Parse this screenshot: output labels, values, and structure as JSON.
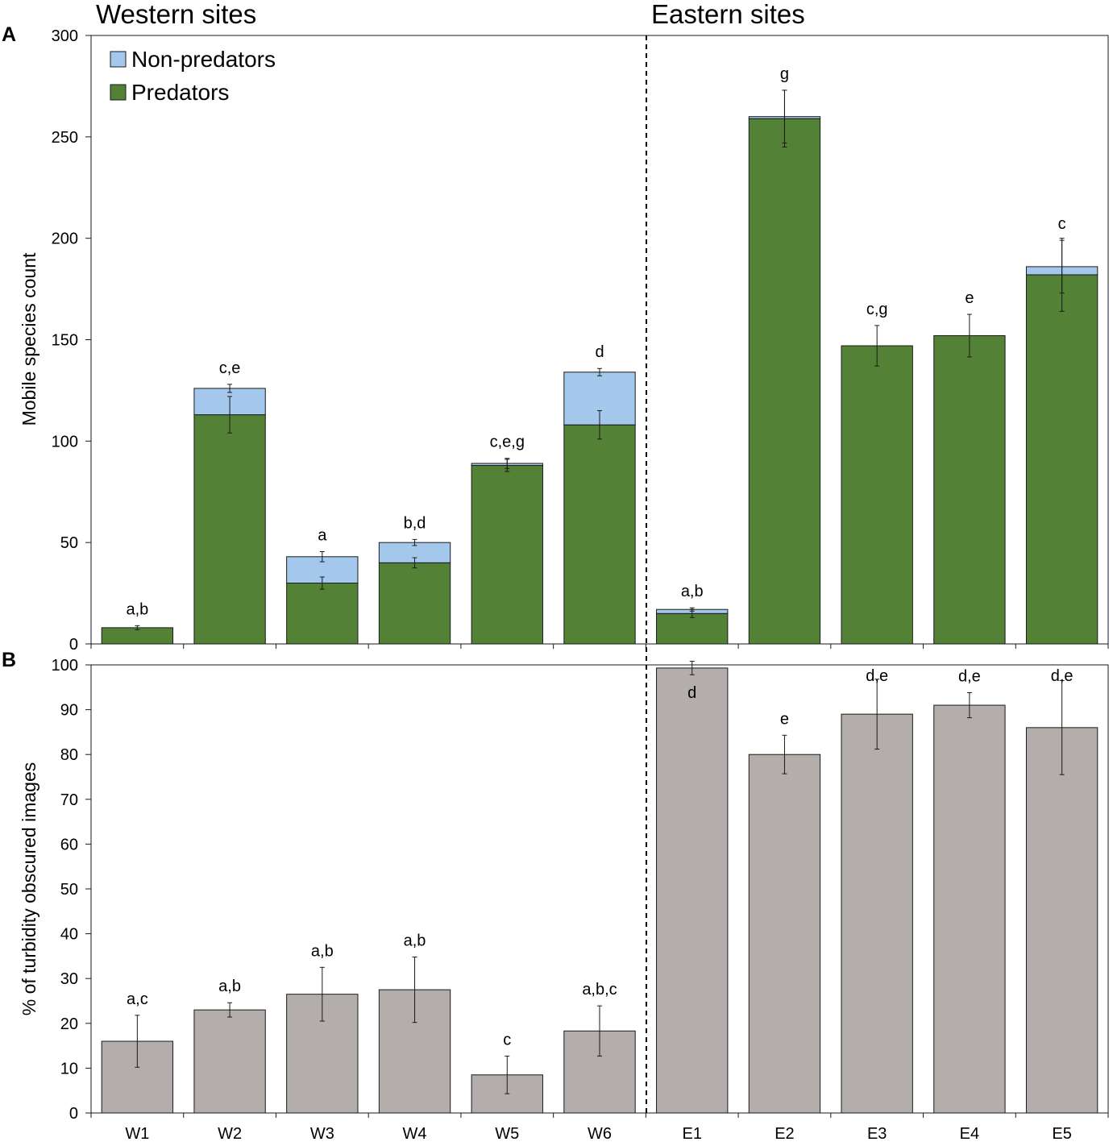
{
  "figure": {
    "panel_a_letter": "A",
    "panel_b_letter": "B",
    "western_title": "Western sites",
    "eastern_title": "Eastern sites"
  },
  "colors": {
    "predators": "#538135",
    "non_predators": "#a4c8ec",
    "turbidity": "#b3adab",
    "outline": "#1a1a1a"
  },
  "chart_data": [
    {
      "panel": "A",
      "type": "bar",
      "stacked": true,
      "title": "",
      "xlabel": "",
      "ylabel": "Mobile species count",
      "ylim": [
        0,
        300
      ],
      "yticks": [
        0,
        50,
        100,
        150,
        200,
        250,
        300
      ],
      "grid": false,
      "legend_position": "top-left",
      "categories": [
        "W1",
        "W2",
        "W3",
        "W4",
        "W5",
        "W6",
        "E1",
        "E2",
        "E3",
        "E4",
        "E5"
      ],
      "series": [
        {
          "name": "Predators",
          "values": [
            8,
            113,
            30,
            40,
            88,
            108,
            15,
            259,
            147,
            152,
            182
          ],
          "error": [
            1,
            9,
            3,
            2.5,
            3,
            7,
            2,
            14,
            10,
            10.5,
            18
          ]
        },
        {
          "name": "Non-predators",
          "values": [
            0,
            13,
            13,
            10,
            1,
            26,
            2,
            1,
            0,
            0,
            4
          ],
          "error": [
            0,
            2,
            2.5,
            1.5,
            2.5,
            1.8,
            0.8,
            13,
            0,
            0,
            13
          ]
        }
      ],
      "significance_labels": [
        "a,b",
        "c,e",
        "a",
        "b,d",
        "c,e,g",
        "d",
        "a,b",
        "g",
        "c,g",
        "e",
        "c"
      ],
      "legend": [
        "Non-predators",
        "Predators"
      ]
    },
    {
      "panel": "B",
      "type": "bar",
      "title": "",
      "xlabel": "",
      "ylabel": "% of turbidity obscured images",
      "ylim": [
        0,
        100
      ],
      "yticks": [
        0,
        10,
        20,
        30,
        40,
        50,
        60,
        70,
        80,
        90,
        100
      ],
      "grid": false,
      "categories": [
        "W1",
        "W2",
        "W3",
        "W4",
        "W5",
        "W6",
        "E1",
        "E2",
        "E3",
        "E4",
        "E5"
      ],
      "values": [
        16,
        23,
        26.5,
        27.5,
        8.5,
        18.3,
        99.3,
        80,
        89,
        91,
        86
      ],
      "error": [
        5.8,
        1.6,
        6,
        7.3,
        4.2,
        5.6,
        1.5,
        4.3,
        7.8,
        2.8,
        10.5
      ],
      "significance_labels": [
        "a,c",
        "a,b",
        "a,b",
        "a,b",
        "c",
        "a,b,c",
        "d",
        "e",
        "d,e",
        "d,e",
        "d,e"
      ]
    }
  ]
}
